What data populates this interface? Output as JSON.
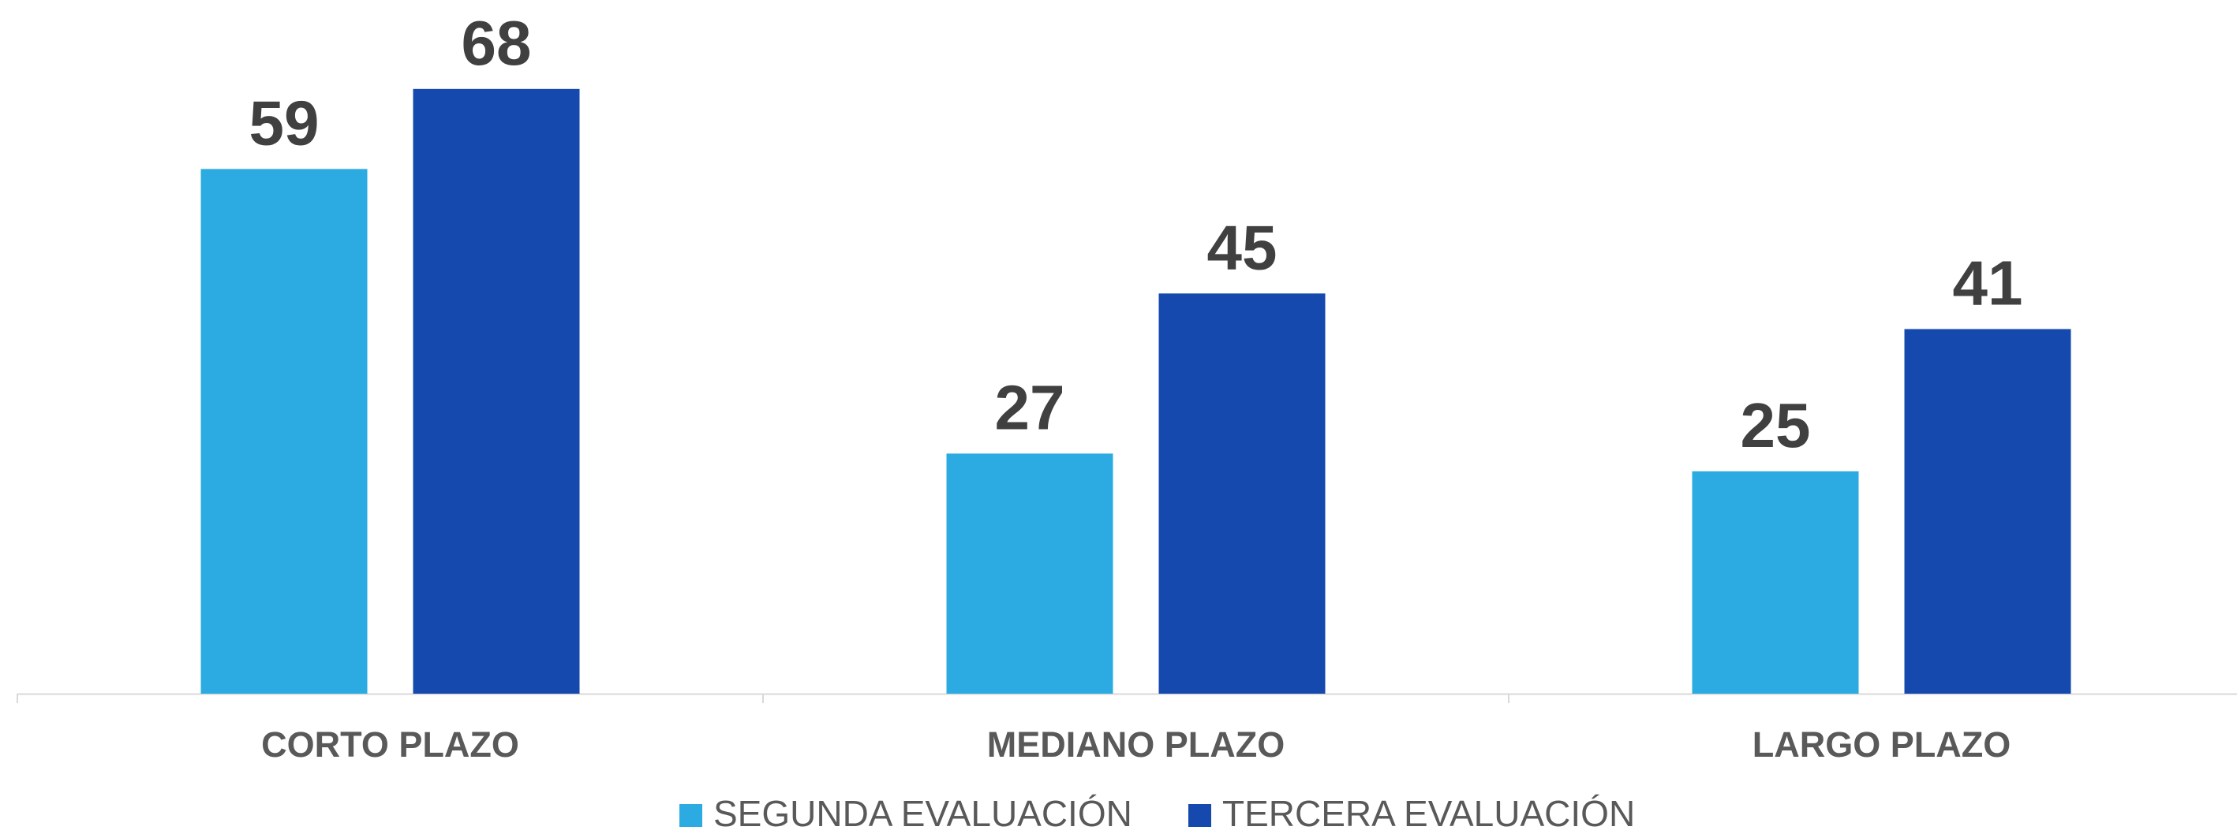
{
  "chart_data": {
    "type": "bar",
    "categories": [
      "CORTO PLAZO",
      "MEDIANO PLAZO",
      "LARGO PLAZO"
    ],
    "series": [
      {
        "name": "SEGUNDA EVALUACIÓN",
        "color": "#2cabe3",
        "values": [
          59,
          27,
          25
        ]
      },
      {
        "name": "TERCERA EVALUACIÓN",
        "color": "#1649ad",
        "values": [
          68,
          45,
          41
        ]
      }
    ],
    "ylim": [
      0,
      78
    ],
    "grid": false,
    "legend": "bottom"
  }
}
